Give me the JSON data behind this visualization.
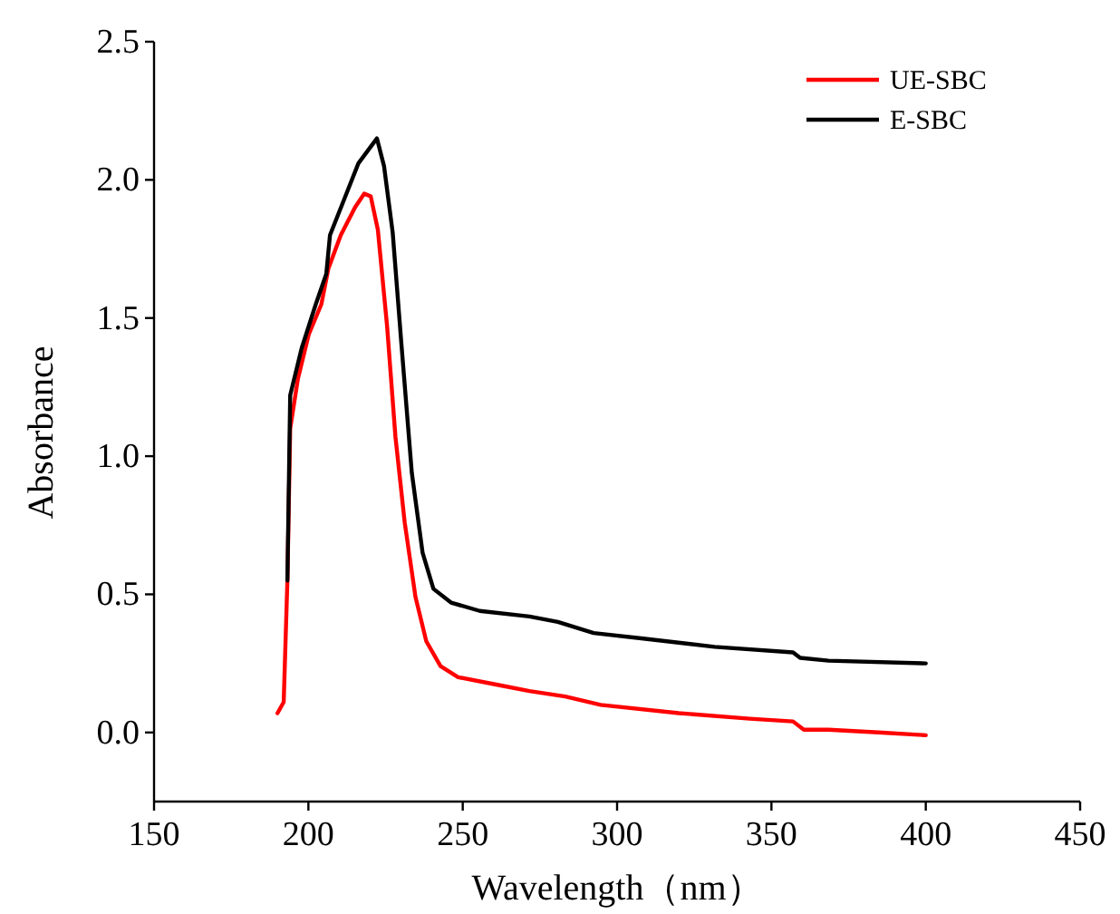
{
  "chart_data": {
    "type": "line",
    "xlabel": "Wavelength（nm）",
    "ylabel": "Absorbance",
    "xlim": [
      150,
      450
    ],
    "ylim": [
      -0.25,
      2.5
    ],
    "xticks": [
      150,
      200,
      250,
      300,
      350,
      400,
      450
    ],
    "yticks": [
      {
        "value": 0,
        "label": "0.0"
      },
      0.5,
      {
        "value": 1,
        "label": "1.0"
      },
      1.5,
      {
        "value": 2,
        "label": "2.0"
      },
      2.5
    ],
    "legend": "top right",
    "series": [
      {
        "name": "UE-SBC",
        "color": "#ff0000",
        "x": [
          190,
          192,
          193.2,
          194.1,
          196.6,
          200.1,
          204.2,
          206.5,
          210.5,
          215.1,
          218.1,
          220.2,
          222.5,
          225.5,
          228.2,
          231.2,
          234.7,
          238.2,
          242.8,
          248.5,
          262.4,
          271.6,
          283.2,
          294.7,
          320,
          343,
          357,
          360.5,
          366,
          368.5,
          384.7,
          400
        ],
        "values": [
          0.07,
          0.11,
          0.55,
          1.1,
          1.28,
          1.44,
          1.55,
          1.68,
          1.8,
          1.9,
          1.95,
          1.94,
          1.82,
          1.47,
          1.07,
          0.76,
          0.49,
          0.33,
          0.24,
          0.2,
          0.17,
          0.15,
          0.13,
          0.1,
          0.07,
          0.05,
          0.04,
          0.01,
          0.01,
          0.01,
          0.0,
          -0.01
        ]
      },
      {
        "name": "E-SBC",
        "color": "#000000",
        "x": [
          193.2,
          194.1,
          197.8,
          202.4,
          205.8,
          207,
          211.6,
          216.2,
          222.2,
          224.5,
          227.3,
          230.1,
          233.5,
          237,
          240.5,
          246.2,
          255.5,
          271.6,
          280.8,
          292.4,
          308.5,
          331.6,
          357,
          359.3,
          368.5,
          400
        ],
        "values": [
          0.55,
          1.22,
          1.39,
          1.55,
          1.66,
          1.8,
          1.93,
          2.06,
          2.15,
          2.05,
          1.81,
          1.41,
          0.94,
          0.65,
          0.52,
          0.47,
          0.44,
          0.42,
          0.4,
          0.36,
          0.34,
          0.31,
          0.29,
          0.27,
          0.26,
          0.25
        ]
      }
    ]
  }
}
